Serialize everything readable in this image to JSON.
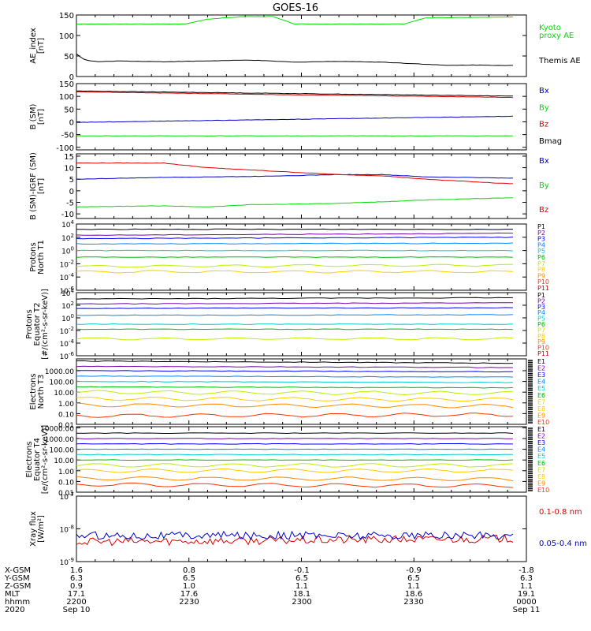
{
  "title": "GOES-16",
  "colors": {
    "black": "#000000",
    "green": "#00dd00",
    "red": "#dd0000",
    "blue": "#0000cc",
    "ch": [
      "#000000",
      "#7700aa",
      "#0000ff",
      "#0088ff",
      "#00cccc",
      "#00bb00",
      "#bbee00",
      "#ffcc00",
      "#ff8800",
      "#ff3300",
      "#cc0000"
    ]
  },
  "chart_data": [
    {
      "type": "line",
      "id": "ae",
      "ylabel": "AE_index\n[nT]",
      "ylim": [
        0,
        150
      ],
      "yticks": [
        0,
        50,
        100,
        150
      ],
      "series": [
        {
          "name": "Kyoto proxy AE",
          "color": "#00dd00",
          "x": [
            0,
            0.25,
            0.3,
            0.38,
            0.45,
            0.5,
            0.75,
            0.8,
            1
          ],
          "values": [
            128,
            128,
            140,
            146,
            146,
            128,
            128,
            143,
            145
          ]
        },
        {
          "name": "Themis AE",
          "color": "#000000",
          "x": [
            0,
            0.02,
            0.05,
            0.1,
            0.2,
            0.3,
            0.4,
            0.5,
            0.6,
            0.7,
            0.8,
            0.85,
            0.9,
            1
          ],
          "values": [
            55,
            40,
            36,
            38,
            36,
            38,
            40,
            35,
            37,
            35,
            30,
            27,
            28,
            27
          ]
        }
      ],
      "legend": [
        {
          "text": "Kyoto",
          "color": "#00dd00"
        },
        {
          "text": "proxy AE",
          "color": "#00dd00"
        },
        {
          "text": "Themis AE",
          "color": "#000000"
        }
      ]
    },
    {
      "type": "line",
      "id": "bsm",
      "ylabel": "B (SM)\n[nT]",
      "ylim": [
        -110,
        150
      ],
      "yticks": [
        -100,
        -50,
        0,
        50,
        100,
        150
      ],
      "series": [
        {
          "name": "Bx",
          "color": "#0000cc",
          "x": [
            0,
            0.5,
            1
          ],
          "values": [
            -2,
            10,
            22
          ]
        },
        {
          "name": "By",
          "color": "#00dd00",
          "x": [
            0,
            1
          ],
          "values": [
            -55,
            -55
          ]
        },
        {
          "name": "Bz",
          "color": "#dd0000",
          "x": [
            0,
            0.5,
            1
          ],
          "values": [
            118,
            106,
            96
          ]
        },
        {
          "name": "Bmag",
          "color": "#000000",
          "x": [
            0,
            0.5,
            1
          ],
          "values": [
            121,
            111,
            101
          ]
        }
      ],
      "legend": [
        {
          "text": "Bx",
          "color": "#0000cc"
        },
        {
          "text": "By",
          "color": "#00dd00"
        },
        {
          "text": "Bz",
          "color": "#dd0000"
        },
        {
          "text": "Bmag",
          "color": "#000000"
        }
      ]
    },
    {
      "type": "line",
      "id": "bigrf",
      "ylabel": "B (SM)-IGRF (SM)\n[nT]",
      "ylim": [
        -12,
        16
      ],
      "yticks": [
        -10,
        -5,
        0,
        5,
        10,
        15
      ],
      "series": [
        {
          "name": "Bx",
          "color": "#0000cc",
          "x": [
            0,
            0.2,
            0.4,
            0.6,
            0.7,
            0.8,
            1
          ],
          "values": [
            5,
            5.8,
            6.2,
            7,
            7,
            6,
            5.5
          ]
        },
        {
          "name": "By",
          "color": "#00dd00",
          "x": [
            0,
            0.2,
            0.3,
            0.4,
            0.6,
            0.8,
            1
          ],
          "values": [
            -7,
            -6.5,
            -7,
            -6,
            -5.5,
            -4,
            -3
          ]
        },
        {
          "name": "Bz",
          "color": "#dd0000",
          "x": [
            0,
            0.2,
            0.3,
            0.4,
            0.5,
            0.6,
            0.7,
            0.8,
            0.9,
            1
          ],
          "values": [
            12,
            12,
            10,
            9,
            8,
            7,
            6.5,
            5,
            4,
            3
          ]
        }
      ],
      "legend": [
        {
          "text": "Bx",
          "color": "#0000cc"
        },
        {
          "text": "By",
          "color": "#00dd00"
        },
        {
          "text": "Bz",
          "color": "#dd0000"
        }
      ]
    },
    {
      "type": "line",
      "id": "pnt1",
      "log": true,
      "ylabel": "Protons\nNorth T1",
      "ylim": [
        -6,
        4
      ],
      "yticks": [
        "10^4",
        "10^2",
        "10^0",
        "10^-2",
        "10^-4",
        "10^-6"
      ],
      "ytick_vals": [
        4,
        2,
        0,
        -2,
        -4,
        -6
      ],
      "series": [
        {
          "name": "P1",
          "values": [
            3.2,
            3.2
          ]
        },
        {
          "name": "P2",
          "values": [
            2.3,
            2.6
          ]
        },
        {
          "name": "P3",
          "values": [
            1.8,
            2.0
          ]
        },
        {
          "name": "P4",
          "values": [
            1.0,
            1.1
          ]
        },
        {
          "name": "P5",
          "values": [
            0.0,
            0.0
          ]
        },
        {
          "name": "P6",
          "values": [
            -1.0,
            -1.0
          ]
        },
        {
          "name": "P7",
          "values": [
            -2.4,
            -2.2
          ]
        },
        {
          "name": "P8",
          "values": [
            -3.2,
            -3.2
          ]
        }
      ],
      "legend": [
        "P1",
        "P2",
        "P3",
        "P4",
        "P5",
        "P6",
        "P7",
        "P8",
        "P9",
        "P10",
        "P11"
      ]
    },
    {
      "type": "line",
      "id": "pet2",
      "log": true,
      "ylabel": "Protons\nEquator T2\n[#/(cm²-s-sr-keV)]",
      "ylim": [
        -6,
        4
      ],
      "yticks": [
        "10^4",
        "10^2",
        "10^0",
        "10^-2",
        "10^-4",
        "10^-6"
      ],
      "ytick_vals": [
        4,
        2,
        0,
        -2,
        -4,
        -6
      ],
      "series": [
        {
          "name": "P1",
          "values": [
            3.0,
            3.2
          ]
        },
        {
          "name": "P2",
          "values": [
            2.2,
            2.4
          ]
        },
        {
          "name": "P3",
          "values": [
            1.5,
            1.6
          ]
        },
        {
          "name": "P4",
          "values": [
            0.4,
            0.5
          ]
        },
        {
          "name": "P5",
          "values": [
            -1.0,
            -1.0
          ]
        },
        {
          "name": "P6",
          "values": [
            -1.8,
            -1.8
          ]
        },
        {
          "name": "P7",
          "values": [
            -3.3,
            -3.3
          ]
        }
      ],
      "legend": [
        "P1",
        "P2",
        "P3",
        "P4",
        "P5",
        "P6",
        "P7",
        "P8",
        "P9",
        "P10",
        "P11"
      ]
    },
    {
      "type": "line",
      "id": "ent3",
      "log": true,
      "ylabel": "Electrons\nNorth T3",
      "ylim": [
        -2,
        4.1
      ],
      "yticks": [
        "1000.00",
        "100.00",
        "10.00",
        "1.00",
        "0.10",
        "0.01"
      ],
      "ytick_vals": [
        3,
        2,
        1,
        0,
        -1,
        -2
      ],
      "series": [
        {
          "name": "E1",
          "values": [
            3.9,
            3.7
          ]
        },
        {
          "name": "E2",
          "values": [
            3.4,
            3.3
          ]
        },
        {
          "name": "E3",
          "values": [
            3.0,
            2.9
          ]
        },
        {
          "name": "E4",
          "values": [
            2.5,
            2.4
          ]
        },
        {
          "name": "E5",
          "values": [
            2.0,
            1.9
          ]
        },
        {
          "name": "E6",
          "values": [
            1.5,
            1.4
          ]
        },
        {
          "name": "E7",
          "values": [
            1.0,
            0.9
          ]
        },
        {
          "name": "E8",
          "values": [
            0.4,
            0.3
          ]
        },
        {
          "name": "E9",
          "values": [
            -0.2,
            -0.3
          ]
        },
        {
          "name": "E10",
          "values": [
            -1.2,
            -1.1
          ]
        }
      ],
      "legend": [
        "E1",
        "E2",
        "E3",
        "E4",
        "E5",
        "E6",
        "E7",
        "E8",
        "E9",
        "E10"
      ]
    },
    {
      "type": "line",
      "id": "eet4",
      "log": true,
      "ylabel": "Electrons\nEquator T4\n[e/(cm²-s-sr-keV)]",
      "ylim": [
        -2,
        4.1
      ],
      "yticks": [
        "10000.00",
        "1000.00",
        "100.00",
        "10.00",
        "1.00",
        "0.10",
        "0.01"
      ],
      "ytick_vals": [
        4,
        3,
        2,
        1,
        0,
        -1,
        -2
      ],
      "series": [
        {
          "name": "E1",
          "values": [
            3.5,
            3.5
          ]
        },
        {
          "name": "E2",
          "values": [
            3.0,
            3.0
          ]
        },
        {
          "name": "E3",
          "values": [
            2.5,
            2.5
          ]
        },
        {
          "name": "E4",
          "values": [
            2.0,
            2.0
          ]
        },
        {
          "name": "E5",
          "values": [
            1.5,
            1.5
          ]
        },
        {
          "name": "E6",
          "values": [
            1.0,
            1.0
          ]
        },
        {
          "name": "E7",
          "values": [
            0.5,
            0.5
          ]
        },
        {
          "name": "E8",
          "values": [
            0.0,
            0.0
          ]
        },
        {
          "name": "E9",
          "values": [
            -0.7,
            -0.8
          ]
        },
        {
          "name": "E10",
          "values": [
            -1.3,
            -1.4
          ]
        }
      ],
      "legend": [
        "E1",
        "E2",
        "E3",
        "E4",
        "E5",
        "E6",
        "E7",
        "E8",
        "E9",
        "E10"
      ]
    },
    {
      "type": "line",
      "id": "xray",
      "log": true,
      "ylabel": "Xray flux\n[W/m²]",
      "ylim": [
        -9,
        -7
      ],
      "yticks": [
        "10^-7",
        "10^-8",
        "10^-9"
      ],
      "ytick_vals": [
        -7,
        -8,
        -9
      ],
      "series": [
        {
          "name": "0.1-0.8 nm",
          "color": "#dd0000",
          "values": [
            -8.4,
            -8.3
          ]
        },
        {
          "name": "0.05-0.4 nm",
          "color": "#0000cc",
          "values": [
            -8.2,
            -8.2
          ]
        }
      ],
      "legend": [
        {
          "text": "0.1-0.8 nm",
          "color": "#dd0000"
        },
        {
          "text": "0.05-0.4 nm",
          "color": "#0000cc"
        }
      ]
    }
  ],
  "ephemeris": {
    "labels": [
      "X-GSM",
      "Y-GSM",
      "Z-GSM",
      "MLT",
      "hhmm",
      "2020"
    ],
    "columns": [
      [
        "1.6",
        "6.3",
        "0.9",
        "17.1",
        "2200",
        "Sep 10"
      ],
      [
        "0.8",
        "6.5",
        "1.0",
        "17.6",
        "2230",
        ""
      ],
      [
        "-0.1",
        "6.5",
        "1.1",
        "18.1",
        "2300",
        ""
      ],
      [
        "-0.9",
        "6.5",
        "1.1",
        "18.6",
        "2330",
        ""
      ],
      [
        "-1.8",
        "6.3",
        "1.1",
        "19.1",
        "0000",
        "Sep 11"
      ]
    ]
  }
}
